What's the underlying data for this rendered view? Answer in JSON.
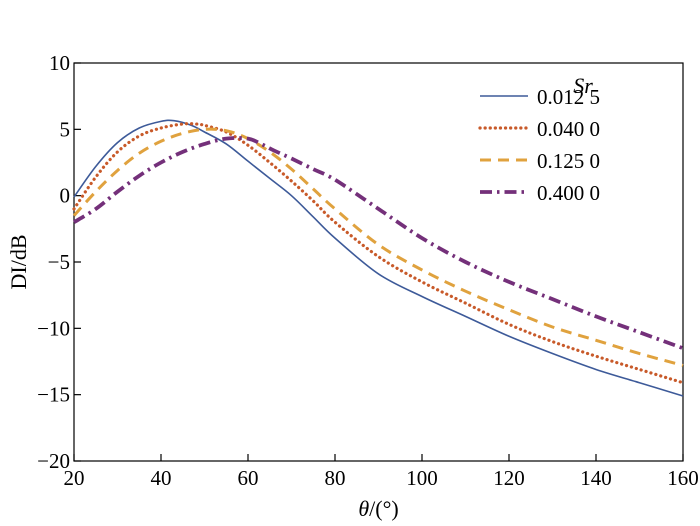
{
  "chart_data": {
    "type": "line",
    "title": "",
    "xlabel_parts": {
      "symbol": "θ",
      "unit": "/(°)"
    },
    "ylabel": "DI/dB",
    "xlim": [
      20,
      160
    ],
    "ylim": [
      -20,
      10
    ],
    "xticks": [
      20,
      40,
      60,
      80,
      100,
      120,
      140,
      160
    ],
    "yticks": [
      10,
      5,
      0,
      -5,
      -10,
      -15,
      -20
    ],
    "ytick_labels": [
      "10",
      "5",
      "0",
      "−5",
      "−10",
      "−15",
      "−20"
    ],
    "grid": false,
    "legend": {
      "title": "Sr",
      "position": "top-right"
    },
    "series": [
      {
        "name": "0.012 5",
        "color": "#3d5a99",
        "style": "solid",
        "x": [
          20,
          25,
          30,
          35,
          40,
          43,
          47,
          50,
          55,
          60,
          65,
          70,
          75,
          80,
          90,
          100,
          110,
          120,
          130,
          140,
          150,
          160
        ],
        "y": [
          -0.1,
          2.2,
          4.0,
          5.1,
          5.6,
          5.65,
          5.3,
          4.8,
          3.9,
          2.6,
          1.3,
          0.0,
          -1.6,
          -3.2,
          -5.9,
          -7.6,
          -9.1,
          -10.6,
          -11.9,
          -13.1,
          -14.1,
          -15.1
        ]
      },
      {
        "name": "0.040 0",
        "color": "#c85a2a",
        "style": "dotted",
        "x": [
          20,
          25,
          30,
          35,
          40,
          45,
          48,
          50,
          55,
          60,
          65,
          70,
          75,
          80,
          90,
          100,
          110,
          120,
          130,
          140,
          150,
          160
        ],
        "y": [
          -1.0,
          1.4,
          3.3,
          4.5,
          5.1,
          5.4,
          5.4,
          5.3,
          4.8,
          3.8,
          2.5,
          1.1,
          -0.4,
          -2.0,
          -4.6,
          -6.5,
          -8.1,
          -9.7,
          -11.0,
          -12.1,
          -13.1,
          -14.1
        ]
      },
      {
        "name": "0.125 0",
        "color": "#e0a23e",
        "style": "dashed",
        "x": [
          20,
          25,
          30,
          35,
          40,
          45,
          50,
          55,
          60,
          65,
          70,
          75,
          80,
          90,
          100,
          110,
          120,
          130,
          140,
          150,
          160
        ],
        "y": [
          -1.5,
          0.3,
          1.9,
          3.2,
          4.1,
          4.7,
          5.0,
          4.9,
          4.3,
          3.3,
          2.0,
          0.5,
          -1.0,
          -3.7,
          -5.6,
          -7.2,
          -8.6,
          -9.9,
          -10.9,
          -11.9,
          -12.8
        ]
      },
      {
        "name": "0.400 0",
        "color": "#74307a",
        "style": "dashdot",
        "x": [
          20,
          25,
          30,
          35,
          40,
          45,
          50,
          55,
          60,
          63,
          66,
          70,
          75,
          80,
          90,
          100,
          110,
          120,
          130,
          140,
          150,
          160
        ],
        "y": [
          -2.0,
          -1.0,
          0.3,
          1.5,
          2.5,
          3.3,
          3.9,
          4.3,
          4.3,
          3.9,
          3.4,
          2.8,
          2.0,
          1.2,
          -1.0,
          -3.2,
          -5.0,
          -6.5,
          -7.8,
          -9.1,
          -10.3,
          -11.5
        ]
      }
    ]
  }
}
